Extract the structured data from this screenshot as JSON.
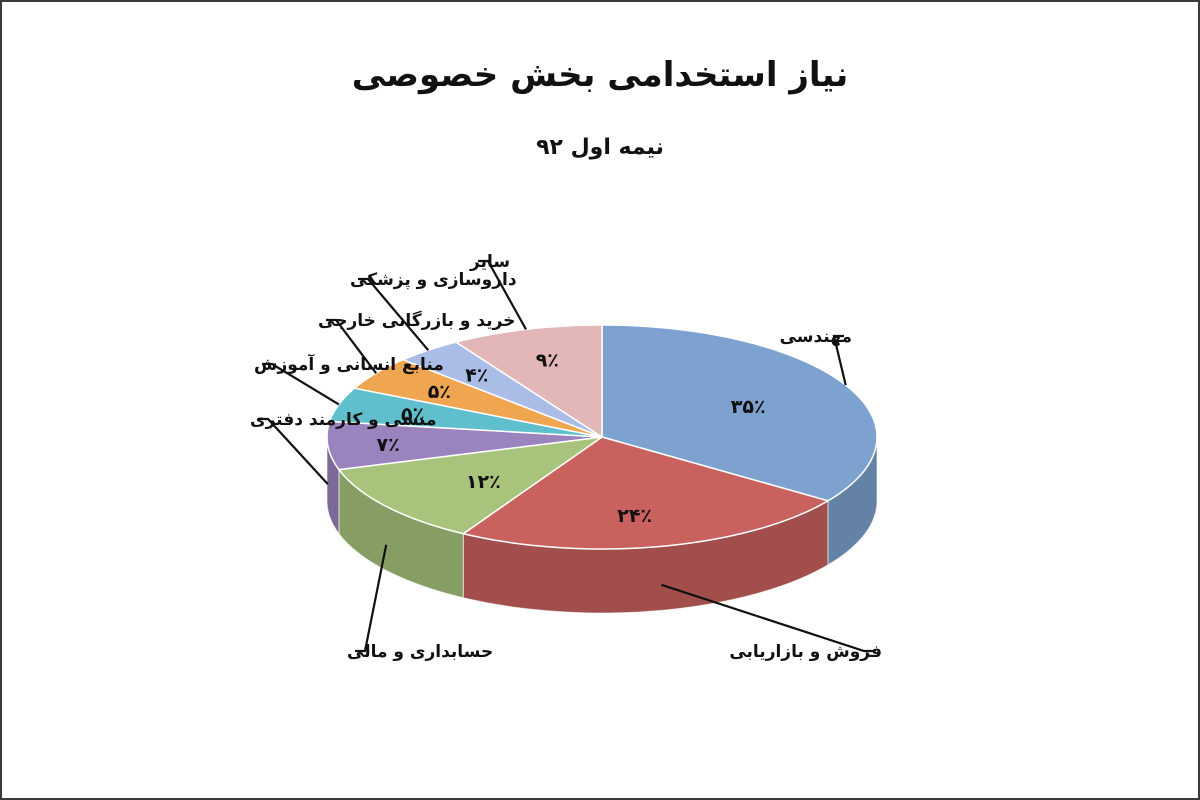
{
  "chart_data": {
    "type": "pie",
    "title": "نیاز استخدامی بخش خصوصی",
    "subtitle": "نیمه اول ۹۲",
    "slices": [
      {
        "label": "مهندسی",
        "value": 35,
        "value_label": "۳۵٪",
        "color": "#7da2cf"
      },
      {
        "label": "فروش و بازاریابی",
        "value": 24,
        "value_label": "۲۴٪",
        "color": "#c9625f"
      },
      {
        "label": "حسابداری و مالی",
        "value": 12,
        "value_label": "۱۲٪",
        "color": "#a8c47c"
      },
      {
        "label": "منشی و کارمند دفتری",
        "value": 7,
        "value_label": "۷٪",
        "color": "#9b83bd"
      },
      {
        "label": "منابع انسانی و آموزش",
        "value": 5,
        "value_label": "۵٪",
        "color": "#5fbfcd"
      },
      {
        "label": "خرید و بازرگانی خارجی",
        "value": 5,
        "value_label": "۵٪",
        "color": "#f0a550"
      },
      {
        "label": "داروسازی و پزشکی",
        "value": 4,
        "value_label": "۴٪",
        "color": "#a9bde6"
      },
      {
        "label": "سایر",
        "value": 9,
        "value_label": "۹٪",
        "color": "#e3b6b7"
      }
    ],
    "legend": "none"
  }
}
